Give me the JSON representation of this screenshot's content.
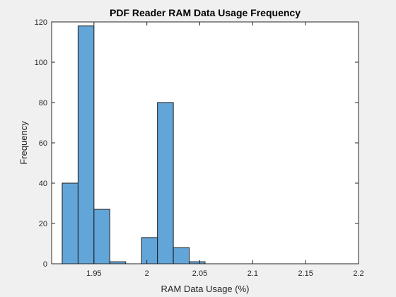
{
  "chart_data": {
    "type": "bar",
    "title": "PDF Reader RAM Data Usage Frequency",
    "xlabel": "RAM Data Usage (%)",
    "ylabel": "Frequency",
    "xlim": [
      1.91,
      2.2
    ],
    "ylim": [
      0,
      120
    ],
    "xticks": [
      1.95,
      2,
      2.05,
      2.1,
      2.15,
      2.2
    ],
    "xtick_labels": [
      "1.95",
      "2",
      "2.05",
      "2.1",
      "2.15",
      "2.2"
    ],
    "yticks": [
      0,
      20,
      40,
      60,
      80,
      100,
      120
    ],
    "ytick_labels": [
      "0",
      "20",
      "40",
      "60",
      "80",
      "100",
      "120"
    ],
    "bin_width": 0.015,
    "bins": [
      {
        "start": 1.92,
        "end": 1.935,
        "count": 40
      },
      {
        "start": 1.935,
        "end": 1.95,
        "count": 118
      },
      {
        "start": 1.95,
        "end": 1.965,
        "count": 27
      },
      {
        "start": 1.965,
        "end": 1.98,
        "count": 1
      },
      {
        "start": 1.98,
        "end": 1.995,
        "count": 0
      },
      {
        "start": 1.995,
        "end": 2.01,
        "count": 13
      },
      {
        "start": 2.01,
        "end": 2.025,
        "count": 80
      },
      {
        "start": 2.025,
        "end": 2.04,
        "count": 8
      },
      {
        "start": 2.04,
        "end": 2.055,
        "count": 1
      }
    ],
    "bar_color": "#62A5D8",
    "edge_color": "#1a1a1a",
    "grid": false,
    "box": true
  }
}
